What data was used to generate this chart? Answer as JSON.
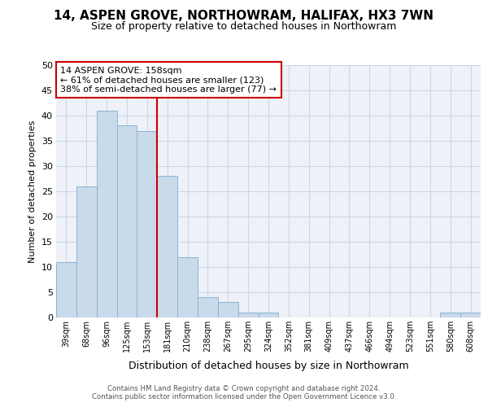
{
  "title": "14, ASPEN GROVE, NORTHOWRAM, HALIFAX, HX3 7WN",
  "subtitle": "Size of property relative to detached houses in Northowram",
  "xlabel": "Distribution of detached houses by size in Northowram",
  "ylabel": "Number of detached properties",
  "categories": [
    "39sqm",
    "68sqm",
    "96sqm",
    "125sqm",
    "153sqm",
    "181sqm",
    "210sqm",
    "238sqm",
    "267sqm",
    "295sqm",
    "324sqm",
    "352sqm",
    "381sqm",
    "409sqm",
    "437sqm",
    "466sqm",
    "494sqm",
    "523sqm",
    "551sqm",
    "580sqm",
    "608sqm"
  ],
  "values": [
    11,
    26,
    41,
    38,
    37,
    28,
    12,
    4,
    3,
    1,
    1,
    0,
    0,
    0,
    0,
    0,
    0,
    0,
    0,
    1,
    1
  ],
  "bar_color": "#c9daea",
  "bar_edge_color": "#8ab4d4",
  "vline_color": "#cc0000",
  "vline_x": 4,
  "annotation_line1": "14 ASPEN GROVE: 158sqm",
  "annotation_line2": "← 61% of detached houses are smaller (123)",
  "annotation_line3": "38% of semi-detached houses are larger (77) →",
  "annotation_box_edgecolor": "#cc0000",
  "grid_color": "#ccd6e8",
  "background_color": "#eef2f8",
  "ylim": [
    0,
    50
  ],
  "yticks": [
    0,
    5,
    10,
    15,
    20,
    25,
    30,
    35,
    40,
    45,
    50
  ],
  "title_fontsize": 11,
  "subtitle_fontsize": 9,
  "xlabel_fontsize": 9,
  "ylabel_fontsize": 8,
  "tick_fontsize": 8,
  "xtick_fontsize": 7,
  "footer_line1": "Contains HM Land Registry data © Crown copyright and database right 2024.",
  "footer_line2": "Contains public sector information licensed under the Open Government Licence v3.0."
}
